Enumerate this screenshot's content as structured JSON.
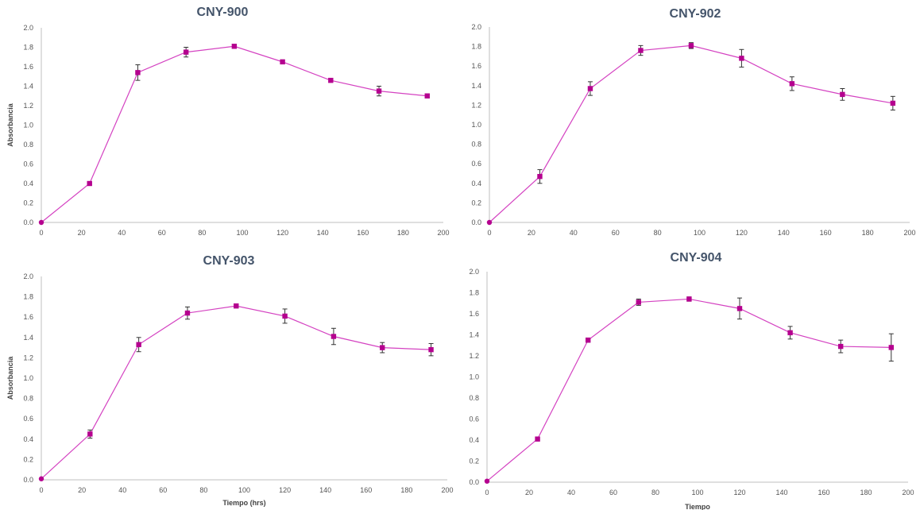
{
  "chart_data": [
    {
      "type": "line",
      "title": "CNY-900",
      "xlabel": "",
      "ylabel": "Absorbancia",
      "xlim": [
        0,
        200
      ],
      "ylim": [
        0,
        2.0
      ],
      "xticks": [
        "0",
        "20",
        "40",
        "60",
        "80",
        "100",
        "120",
        "140",
        "160",
        "180",
        "200"
      ],
      "yticks": [
        "0.0",
        "0.2",
        "0.4",
        "0.6",
        "0.8",
        "1.0",
        "1.2",
        "1.4",
        "1.6",
        "1.8",
        "2.0"
      ],
      "grid": false,
      "series_color": "#b5008f",
      "line_color": "#d442c1",
      "x": [
        0,
        24,
        48,
        72,
        96,
        120,
        144,
        168,
        192
      ],
      "values": [
        0.0,
        0.4,
        1.54,
        1.75,
        1.81,
        1.65,
        1.46,
        1.35,
        1.3
      ],
      "errors": [
        0.0,
        0.01,
        0.08,
        0.05,
        0.02,
        0.02,
        0.02,
        0.05,
        0.02
      ]
    },
    {
      "type": "line",
      "title": "CNY-902",
      "xlabel": "",
      "ylabel": "",
      "xlim": [
        0,
        200
      ],
      "ylim": [
        0,
        2.0
      ],
      "xticks": [
        "0",
        "20",
        "40",
        "60",
        "80",
        "100",
        "120",
        "140",
        "160",
        "180",
        "200"
      ],
      "yticks": [
        "0.0",
        "0.2",
        "0.4",
        "0.6",
        "0.8",
        "1.0",
        "1.2",
        "1.4",
        "1.6",
        "1.8",
        "2.0"
      ],
      "grid": false,
      "series_color": "#b5008f",
      "line_color": "#d442c1",
      "x": [
        0,
        24,
        48,
        72,
        96,
        120,
        144,
        168,
        192
      ],
      "values": [
        0.0,
        0.47,
        1.37,
        1.76,
        1.81,
        1.68,
        1.42,
        1.31,
        1.22
      ],
      "errors": [
        0.0,
        0.07,
        0.07,
        0.05,
        0.03,
        0.09,
        0.07,
        0.06,
        0.07
      ]
    },
    {
      "type": "line",
      "title": "CNY-903",
      "xlabel": "Tiempo (hrs)",
      "ylabel": "Absorbancia",
      "xlim": [
        0,
        200
      ],
      "ylim": [
        0,
        2.0
      ],
      "xticks": [
        "0",
        "20",
        "40",
        "60",
        "80",
        "100",
        "120",
        "140",
        "160",
        "180",
        "200"
      ],
      "yticks": [
        "0.0",
        "0.2",
        "0.4",
        "0.6",
        "0.8",
        "1.0",
        "1.2",
        "1.4",
        "1.6",
        "1.8",
        "2.0"
      ],
      "grid": false,
      "series_color": "#b5008f",
      "line_color": "#d442c1",
      "x": [
        0,
        24,
        48,
        72,
        96,
        120,
        144,
        168,
        192
      ],
      "values": [
        0.01,
        0.45,
        1.33,
        1.64,
        1.71,
        1.61,
        1.41,
        1.3,
        1.28
      ],
      "errors": [
        0.0,
        0.04,
        0.07,
        0.06,
        0.02,
        0.07,
        0.08,
        0.05,
        0.06
      ]
    },
    {
      "type": "line",
      "title": "CNY-904",
      "xlabel": "Tiempo",
      "ylabel": "",
      "xlim": [
        0,
        200
      ],
      "ylim": [
        0,
        2.0
      ],
      "xticks": [
        "0",
        "20",
        "40",
        "60",
        "80",
        "100",
        "120",
        "140",
        "160",
        "180",
        "200"
      ],
      "yticks": [
        "0.0",
        "0.2",
        "0.4",
        "0.6",
        "0.8",
        "1.0",
        "1.2",
        "1.4",
        "1.6",
        "1.8",
        "2.0"
      ],
      "grid": false,
      "series_color": "#b5008f",
      "line_color": "#d442c1",
      "x": [
        0,
        24,
        48,
        72,
        96,
        120,
        144,
        168,
        192
      ],
      "values": [
        0.01,
        0.41,
        1.35,
        1.71,
        1.74,
        1.65,
        1.42,
        1.29,
        1.28
      ],
      "errors": [
        0.0,
        0.01,
        0.02,
        0.03,
        0.02,
        0.1,
        0.06,
        0.06,
        0.13
      ]
    }
  ]
}
